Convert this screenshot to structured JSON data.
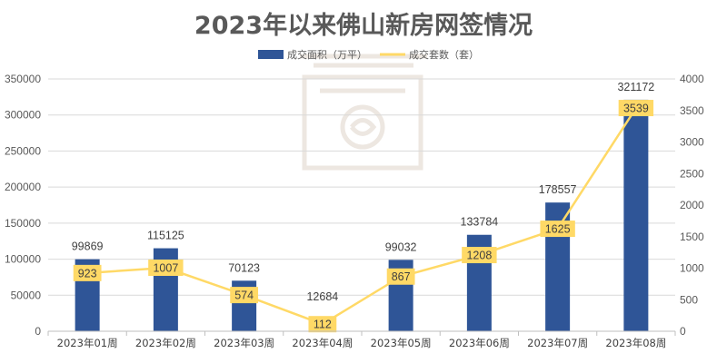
{
  "chart_data": {
    "type": "bar",
    "title": "2023年以来佛山新房网签情况",
    "categories": [
      "2023年01周",
      "2023年02周",
      "2023年03周",
      "2023年04周",
      "2023年05周",
      "2023年06周",
      "2023年07周",
      "2023年08周"
    ],
    "series": [
      {
        "name": "成交面积（万平）",
        "type": "bar",
        "axis": "left",
        "values": [
          99869,
          115125,
          70123,
          12684,
          99032,
          133784,
          178557,
          321172
        ]
      },
      {
        "name": "成交套数（套）",
        "type": "line",
        "axis": "right",
        "values": [
          923,
          1007,
          574,
          112,
          867,
          1208,
          1625,
          3539
        ]
      }
    ],
    "y_left": {
      "range": [
        0,
        350000
      ],
      "ticks": [
        "0",
        "50000",
        "100000",
        "150000",
        "200000",
        "250000",
        "300000",
        "350000"
      ]
    },
    "y_right": {
      "range": [
        0,
        4000
      ],
      "ticks": [
        "0",
        "500",
        "1000",
        "1500",
        "2000",
        "2500",
        "3000",
        "3500",
        "4000"
      ]
    },
    "grid": true,
    "legend": "top-center",
    "colors": {
      "bar": "#2f5597",
      "line": "#ffd966",
      "label_bg": "#ffd966",
      "watermark": "#ede7e1"
    }
  }
}
